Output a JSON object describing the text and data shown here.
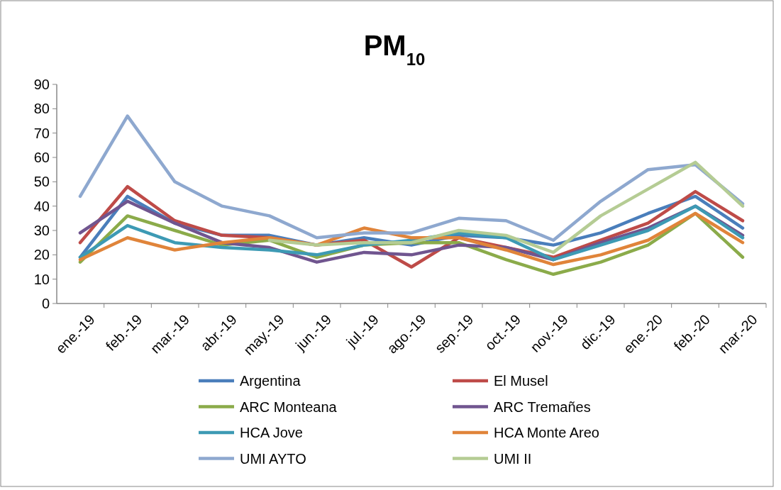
{
  "chart_data": {
    "type": "line",
    "title": "PM$_{10}$",
    "categories": [
      "ene.-19",
      "feb.-19",
      "mar.-19",
      "abr.-19",
      "may.-19",
      "jun.-19",
      "jul.-19",
      "ago.-19",
      "sep.-19",
      "oct.-19",
      "nov.-19",
      "dic.-19",
      "ene.-20",
      "feb.-20",
      "mar.-20"
    ],
    "ylim": [
      0,
      90
    ],
    "yticks": [
      0,
      10,
      20,
      30,
      40,
      50,
      60,
      70,
      80,
      90
    ],
    "grid": false,
    "legend": "bottom",
    "marker": "none",
    "line_style": "solid",
    "series": [
      {
        "name": "Argentina",
        "color": "#4a7ebb",
        "values": [
          19,
          44,
          33,
          28,
          28,
          24,
          27,
          24,
          28,
          27,
          24,
          29,
          37,
          44,
          31
        ]
      },
      {
        "name": "El Musel",
        "color": "#be4b48",
        "values": [
          25,
          48,
          34,
          28,
          27,
          24,
          26,
          15,
          27,
          23,
          19,
          26,
          33,
          46,
          34
        ]
      },
      {
        "name": "ARC Monteana",
        "color": "#8bab4a",
        "values": [
          17,
          36,
          30,
          24,
          26,
          19,
          24,
          25,
          25,
          18,
          12,
          17,
          24,
          37,
          19
        ]
      },
      {
        "name": "ARC Tremañes",
        "color": "#70558f",
        "values": [
          29,
          42,
          33,
          25,
          23,
          17,
          21,
          20,
          24,
          23,
          18,
          25,
          31,
          40,
          28
        ]
      },
      {
        "name": "HCA Jove",
        "color": "#3d9ab4",
        "values": [
          19,
          32,
          25,
          23,
          22,
          20,
          24,
          26,
          29,
          27,
          18,
          24,
          30,
          40,
          27
        ]
      },
      {
        "name": "HCA Monte Areo",
        "color": "#e0843a",
        "values": [
          18,
          27,
          22,
          25,
          27,
          24,
          31,
          27,
          27,
          22,
          16,
          20,
          26,
          37,
          25
        ]
      },
      {
        "name": "UMI AYTO",
        "color": "#8ea8cf",
        "values": [
          44,
          77,
          50,
          40,
          36,
          27,
          29,
          29,
          35,
          34,
          26,
          42,
          55,
          57,
          41
        ]
      },
      {
        "name": "UMI II",
        "color": "#b5cc94",
        "values": [
          null,
          null,
          null,
          null,
          26,
          24,
          25,
          25,
          30,
          28,
          21,
          36,
          47,
          58,
          40
        ]
      }
    ]
  }
}
